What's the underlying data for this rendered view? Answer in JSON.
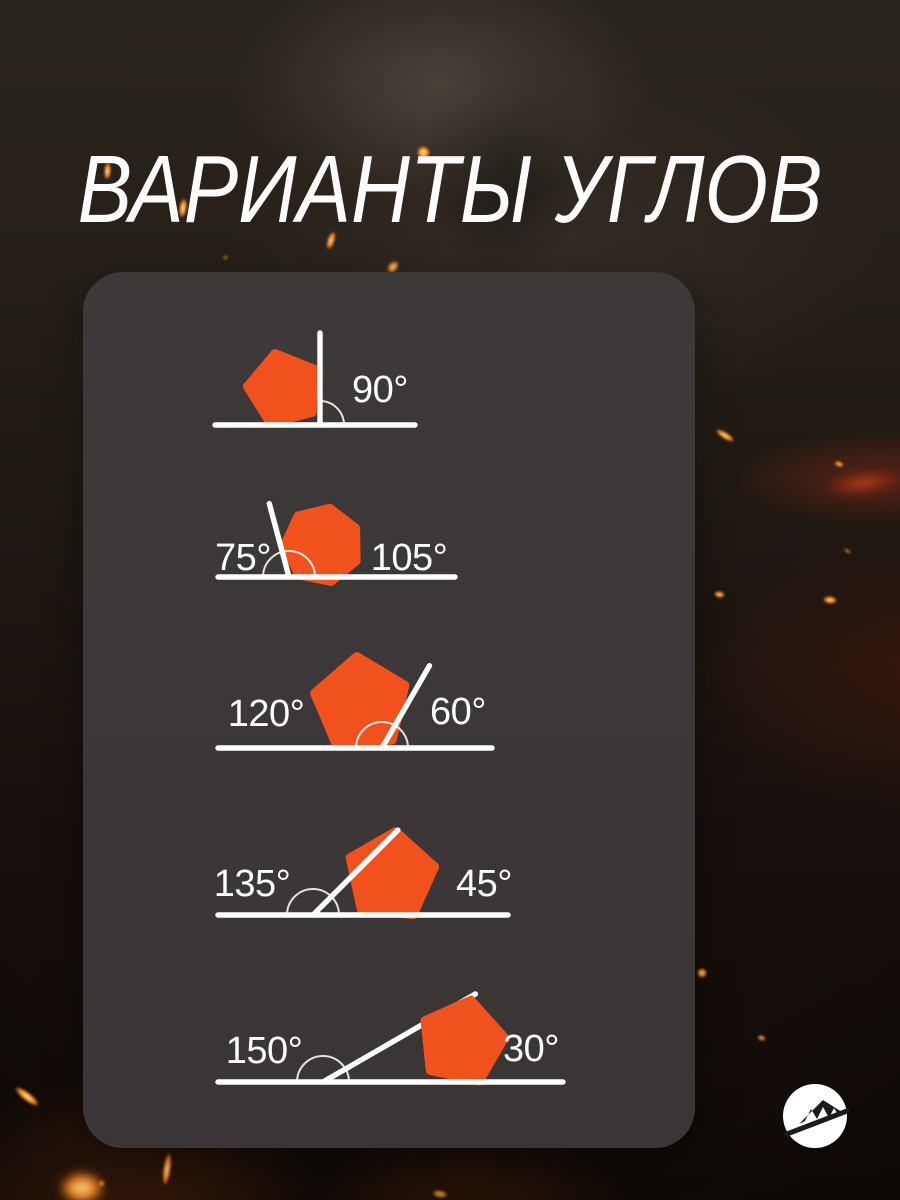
{
  "title": "ВАРИАНТЫ УГЛОВ",
  "colors": {
    "accent_orange": "#F1511D",
    "panel_background": "#3B3637",
    "page_background": "#1C1410",
    "line_color": "#FFFFFF",
    "arc_color": "rgba(255,255,255,0.85)",
    "text_color": "#FFFFFF",
    "logo_circle": "#FFFFFF",
    "logo_mountain": "#1B1B1B"
  },
  "diagrams": [
    {
      "id": "90",
      "shape": "pentagon",
      "right_angle_deg": 90,
      "labels": {
        "right": "90°"
      }
    },
    {
      "id": "75-105",
      "shape": "heptagon",
      "right_angle_deg": 105,
      "labels": {
        "left": "75°",
        "right": "105°"
      }
    },
    {
      "id": "120-60",
      "shape": "pentagon",
      "right_angle_deg": 60,
      "labels": {
        "left": "120°",
        "right": "60°"
      }
    },
    {
      "id": "135-45",
      "shape": "pentagon",
      "right_angle_deg": 45,
      "labels": {
        "left": "135°",
        "right": "45°"
      }
    },
    {
      "id": "150-30",
      "shape": "pentagon",
      "right_angle_deg": 30,
      "labels": {
        "left": "150°",
        "right": "30°"
      }
    }
  ],
  "logo": {
    "icon": "mountain-icon"
  }
}
